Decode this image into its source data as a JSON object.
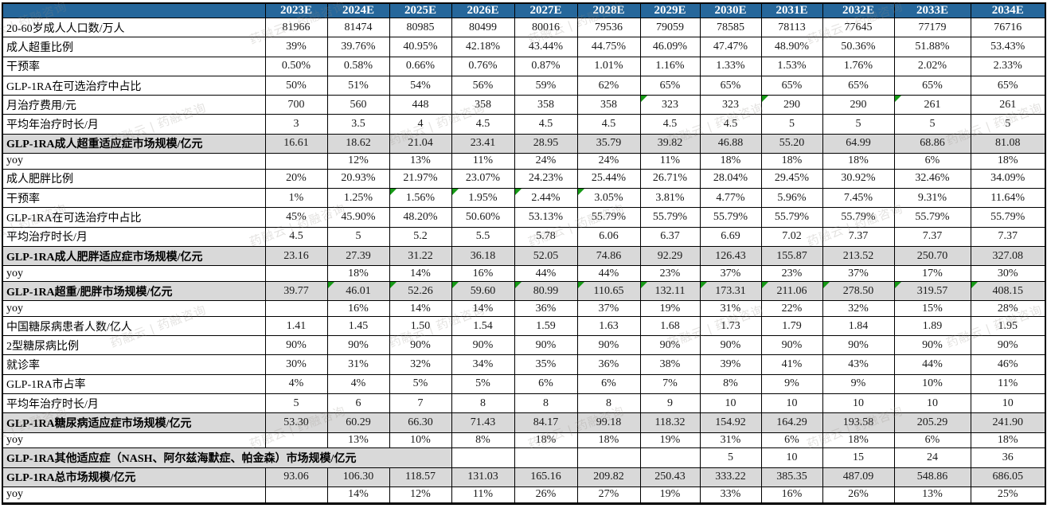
{
  "watermark": {
    "text": "药融云 | 药融咨询"
  },
  "colors": {
    "header_bg": "#26679B",
    "header_text": "#FFFFFF",
    "highlight_row": "#D9D9D9",
    "grid": "#000000",
    "flag_green": "#169A16"
  },
  "chart_data": {
    "type": "table",
    "columns": [
      "2023E",
      "2024E",
      "2025E",
      "2026E",
      "2027E",
      "2028E",
      "2029E",
      "2030E",
      "2031E",
      "2032E",
      "2033E",
      "2034E"
    ],
    "rows": [
      {
        "label": "20-60岁成人人口数/万人",
        "values": [
          "81966",
          "81474",
          "80985",
          "80499",
          "80016",
          "79536",
          "79059",
          "78585",
          "78113",
          "77645",
          "77179",
          "76716"
        ]
      },
      {
        "label": "成人超重比例",
        "values": [
          "39%",
          "39.76%",
          "40.95%",
          "42.18%",
          "43.44%",
          "44.75%",
          "46.09%",
          "47.47%",
          "48.90%",
          "50.36%",
          "51.88%",
          "53.43%"
        ]
      },
      {
        "label": "干预率",
        "values": [
          "0.50%",
          "0.58%",
          "0.66%",
          "0.76%",
          "0.87%",
          "1.01%",
          "1.16%",
          "1.33%",
          "1.53%",
          "1.76%",
          "2.02%",
          "2.33%"
        ]
      },
      {
        "label": "GLP-1RA在可选治疗中占比",
        "values": [
          "50%",
          "51%",
          "54%",
          "56%",
          "59%",
          "62%",
          "65%",
          "65%",
          "65%",
          "65%",
          "65%",
          "65%"
        ]
      },
      {
        "label": "月治疗费用/元",
        "values": [
          "700",
          "560",
          "448",
          "358",
          "358",
          "358",
          "323",
          "323",
          "290",
          "290",
          "261",
          "261"
        ],
        "green_flags": [
          6,
          8,
          10
        ]
      },
      {
        "label": "平均年治疗时长/月",
        "values": [
          "3",
          "3.5",
          "4",
          "4.5",
          "4.5",
          "4.5",
          "4.5",
          "4.5",
          "5",
          "5",
          "5",
          "5"
        ]
      },
      {
        "label": "GLP-1RA成人超重适应症市场规模/亿元",
        "highlight": true,
        "values": [
          "16.61",
          "18.62",
          "21.04",
          "23.41",
          "28.95",
          "35.79",
          "39.82",
          "46.88",
          "55.20",
          "64.99",
          "68.86",
          "81.08"
        ]
      },
      {
        "label": "yoy",
        "values": [
          "",
          "12%",
          "13%",
          "11%",
          "24%",
          "24%",
          "11%",
          "18%",
          "18%",
          "18%",
          "6%",
          "18%"
        ]
      },
      {
        "label": "成人肥胖比例",
        "values": [
          "20%",
          "20.93%",
          "21.97%",
          "23.07%",
          "24.23%",
          "25.44%",
          "26.71%",
          "28.04%",
          "29.45%",
          "30.92%",
          "32.46%",
          "34.09%"
        ]
      },
      {
        "label": "干预率",
        "values": [
          "1%",
          "1.25%",
          "1.56%",
          "1.95%",
          "2.44%",
          "3.05%",
          "3.81%",
          "4.77%",
          "5.96%",
          "7.45%",
          "9.31%",
          "11.64%"
        ],
        "green_flags": [
          2,
          3,
          4,
          5
        ]
      },
      {
        "label": "GLP-1RA在可选治疗中占比",
        "values": [
          "45%",
          "45.90%",
          "48.20%",
          "50.60%",
          "53.13%",
          "55.79%",
          "55.79%",
          "55.79%",
          "55.79%",
          "55.79%",
          "55.79%",
          "55.79%"
        ]
      },
      {
        "label": "平均治疗时长/月",
        "values": [
          "4.5",
          "5",
          "5.2",
          "5.5",
          "5.78",
          "6.06",
          "6.37",
          "6.69",
          "7.02",
          "7.37",
          "7.37",
          "7.37"
        ]
      },
      {
        "label": "GLP-1RA成人肥胖适应症市场规模/亿元",
        "highlight": true,
        "values": [
          "23.16",
          "27.39",
          "31.22",
          "36.18",
          "52.05",
          "74.86",
          "92.29",
          "126.43",
          "155.87",
          "213.52",
          "250.70",
          "327.08"
        ]
      },
      {
        "label": "yoy",
        "values": [
          "",
          "18%",
          "14%",
          "16%",
          "44%",
          "44%",
          "23%",
          "37%",
          "23%",
          "37%",
          "17%",
          "30%"
        ]
      },
      {
        "label": "GLP-1RA超重/肥胖市场规模/亿元",
        "highlight": true,
        "values": [
          "39.77",
          "46.01",
          "52.26",
          "59.60",
          "80.99",
          "110.65",
          "132.11",
          "173.31",
          "211.06",
          "278.50",
          "319.57",
          "408.15"
        ],
        "green_flags": [
          1,
          2,
          3,
          4,
          5,
          6,
          7,
          8,
          9,
          10,
          11
        ]
      },
      {
        "label": "yoy",
        "values": [
          "",
          "16%",
          "14%",
          "14%",
          "36%",
          "37%",
          "19%",
          "31%",
          "22%",
          "32%",
          "15%",
          "28%"
        ]
      },
      {
        "label": "中国糖尿病患者人数/亿人",
        "values": [
          "1.41",
          "1.45",
          "1.50",
          "1.54",
          "1.59",
          "1.63",
          "1.68",
          "1.73",
          "1.79",
          "1.84",
          "1.89",
          "1.95"
        ]
      },
      {
        "label": "2型糖尿病比例",
        "values": [
          "90%",
          "90%",
          "90%",
          "90%",
          "90%",
          "90%",
          "90%",
          "90%",
          "90%",
          "90%",
          "90%",
          "90%"
        ]
      },
      {
        "label": "就诊率",
        "values": [
          "30%",
          "31%",
          "32%",
          "34%",
          "35%",
          "36%",
          "38%",
          "39%",
          "41%",
          "43%",
          "44%",
          "46%"
        ]
      },
      {
        "label": "GLP-1RA市占率",
        "values": [
          "4%",
          "4%",
          "5%",
          "5%",
          "6%",
          "6%",
          "7%",
          "8%",
          "9%",
          "9%",
          "10%",
          "11%"
        ]
      },
      {
        "label": "平均年治疗时长/月",
        "values": [
          "5",
          "6",
          "7",
          "8",
          "8",
          "8",
          "9",
          "10",
          "10",
          "10",
          "10",
          "10"
        ]
      },
      {
        "label": "GLP-1RA糖尿病适应症市场规模/亿元",
        "highlight": true,
        "values": [
          "53.30",
          "60.29",
          "66.30",
          "71.43",
          "84.17",
          "99.18",
          "118.32",
          "154.92",
          "164.29",
          "193.58",
          "205.29",
          "241.90"
        ]
      },
      {
        "label": "yoy",
        "values": [
          "",
          "13%",
          "10%",
          "8%",
          "18%",
          "18%",
          "19%",
          "31%",
          "6%",
          "18%",
          "6%",
          "18%"
        ]
      },
      {
        "label": "GLP-1RA其他适应症（NASH、阿尔兹海默症、帕金森）市场规模/亿元",
        "label_colspan": 4,
        "values": [
          "",
          "",
          "",
          "",
          "5",
          "10",
          "15",
          "24",
          "36"
        ]
      },
      {
        "label": "GLP-1RA总市场规模/亿元",
        "highlight": true,
        "values": [
          "93.06",
          "106.30",
          "118.57",
          "131.03",
          "165.16",
          "209.82",
          "250.43",
          "333.22",
          "385.35",
          "487.09",
          "548.86",
          "686.05"
        ]
      },
      {
        "label": "yoy",
        "values": [
          "",
          "14%",
          "12%",
          "11%",
          "26%",
          "27%",
          "19%",
          "33%",
          "16%",
          "26%",
          "13%",
          "25%"
        ]
      }
    ]
  }
}
